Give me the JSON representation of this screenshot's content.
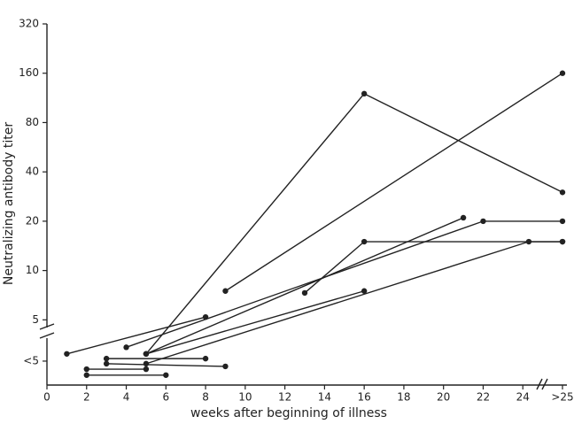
{
  "chart_data": {
    "type": "line",
    "y_label": "Neutralizing antibody titer",
    "x_label": "weeks after beginning of illness",
    "color": "#222222",
    "log_y": true,
    "xlim": [
      0,
      26
    ],
    "ylim": [
      2,
      320
    ],
    "xticks": [
      0,
      2,
      4,
      6,
      8,
      10,
      12,
      14,
      16,
      18,
      20,
      22,
      24,
      {
        "value": 26,
        "label": ">25"
      }
    ],
    "yticks": [
      {
        "value": 2.8,
        "label": "<5"
      },
      5,
      10,
      20,
      40,
      80,
      160,
      320
    ],
    "series": [
      {
        "x": [
          1,
          8
        ],
        "values": [
          3.1,
          5.2
        ]
      },
      {
        "x": [
          4,
          22,
          26
        ],
        "values": [
          3.4,
          20,
          20
        ]
      },
      {
        "x": [
          5,
          16,
          26
        ],
        "values": [
          3.1,
          120,
          30
        ]
      },
      {
        "x": [
          5,
          21
        ],
        "values": [
          3.1,
          21
        ]
      },
      {
        "x": [
          9,
          26
        ],
        "values": [
          7.5,
          160
        ]
      },
      {
        "x": [
          13,
          16,
          26
        ],
        "values": [
          7.3,
          15,
          15
        ]
      },
      {
        "x": [
          5,
          16
        ],
        "values": [
          3.1,
          7.5
        ]
      },
      {
        "x": [
          5,
          24.3,
          26
        ],
        "values": [
          2.7,
          15,
          15
        ]
      },
      {
        "x": [
          3,
          8
        ],
        "values": [
          2.9,
          2.9
        ]
      },
      {
        "x": [
          3,
          9
        ],
        "values": [
          2.7,
          2.6
        ]
      },
      {
        "x": [
          2,
          5
        ],
        "values": [
          2.5,
          2.5
        ]
      },
      {
        "x": [
          2,
          6
        ],
        "values": [
          2.3,
          2.3
        ]
      }
    ]
  }
}
